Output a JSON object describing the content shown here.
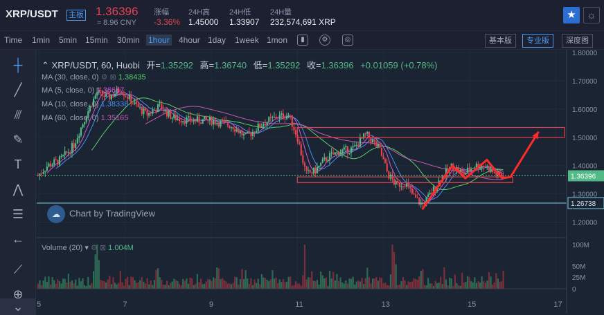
{
  "header": {
    "pair": "XRP/USDT",
    "pair_badge": "主板",
    "last_price": "1.36396",
    "cny": "≈ 8.96 CNY",
    "stats": [
      {
        "label": "涨幅",
        "value": "-3.36%",
        "red": true
      },
      {
        "label": "24H高",
        "value": "1.45000"
      },
      {
        "label": "24H低",
        "value": "1.33907"
      },
      {
        "label": "24H量",
        "value": "232,574,691 XRP"
      }
    ]
  },
  "toolbar": {
    "timeframes": [
      "Time",
      "1min",
      "5min",
      "15min",
      "30min",
      "1hour",
      "4hour",
      "1day",
      "1week",
      "1mon"
    ],
    "active_timeframe": "1hour",
    "views": [
      "基本版",
      "专业版",
      "深度图"
    ],
    "active_view": "专业版"
  },
  "legend": {
    "symbol": "XRP/USDT, 60, Huobi",
    "open_label": "开=",
    "open": "1.35292",
    "high_label": "高=",
    "high": "1.36740",
    "low_label": "低=",
    "low": "1.35292",
    "close_label": "收=",
    "close": "1.36396",
    "change": "+0.01059 (+0.78%)"
  },
  "indicators": [
    {
      "label": "MA (30, close, 0)",
      "value": "1.38435",
      "color": "#59d06b"
    },
    {
      "label": "MA (5, close, 0)",
      "value": "1.36667",
      "color": "#d65ad6"
    },
    {
      "label": "MA (10, close, 0)",
      "value": "1.38338",
      "color": "#4a8cf0"
    },
    {
      "label": "MA (60, close, 0)",
      "value": "1.35165",
      "color": "#c75ab0"
    }
  ],
  "volume": {
    "label": "Volume (20)",
    "value": "1.004M"
  },
  "watermark": "Chart by TradingView",
  "chart_data": {
    "type": "candlestick",
    "x_ticks": [
      "5",
      "7",
      "9",
      "11",
      "13",
      "15",
      "17"
    ],
    "y_ticks": [
      "1.80000",
      "1.70000",
      "1.60000",
      "1.50000",
      "1.40000",
      "1.30000",
      "1.20000"
    ],
    "ylim": [
      1.15,
      1.81
    ],
    "current_price_label": "1.36396",
    "horizontal_line_label": "1.26738",
    "volume_ticks": [
      "100M",
      "50M",
      "25M",
      "0"
    ],
    "annotation_boxes": [
      {
        "x": [
          11,
          17.2
        ],
        "y": [
          1.5,
          1.535
        ],
        "color": "#e2434e"
      },
      {
        "x": [
          11,
          16
        ],
        "y": [
          1.34,
          1.36
        ],
        "color": "#e2434e"
      }
    ],
    "annotation_path": [
      [
        13.9,
        1.245
      ],
      [
        14.6,
        1.4
      ],
      [
        14.9,
        1.355
      ],
      [
        15.4,
        1.42
      ],
      [
        15.75,
        1.355
      ],
      [
        15.95,
        1.36
      ],
      [
        16.6,
        1.52
      ]
    ],
    "colors": {
      "up": "#53b987",
      "down": "#e2434e",
      "boxes": "#e2434e"
    }
  }
}
